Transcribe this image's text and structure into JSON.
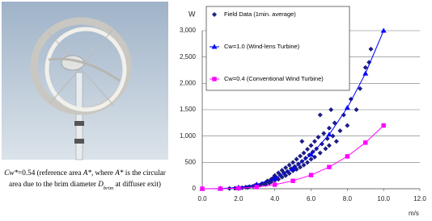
{
  "photo_caption": {
    "lines": [
      [
        {
          "text": "Cw*",
          "italic": true
        },
        {
          "text": "=0.54 (reference area "
        },
        {
          "text": "A*",
          "italic": true
        },
        {
          "text": ", where "
        },
        {
          "text": "A*",
          "italic": true
        },
        {
          "text": " is the circular"
        }
      ],
      [
        {
          "text": "area due to the brim diameter "
        },
        {
          "text": "D",
          "italic": true
        },
        {
          "text": "brim",
          "italic": true,
          "sub": true
        },
        {
          "text": " at diffuser exit)"
        }
      ]
    ]
  },
  "chart_data": {
    "type": "scatter",
    "y_unit": "W",
    "x_unit": "m/s",
    "xlim": [
      0,
      12
    ],
    "xticks": [
      {
        "value": 0,
        "label": "0.0"
      },
      {
        "value": 2,
        "label": "2.0"
      },
      {
        "value": 4,
        "label": "4.0"
      },
      {
        "value": 6,
        "label": "6.0"
      },
      {
        "value": 8,
        "label": "8.0"
      },
      {
        "value": 10,
        "label": "10.0"
      },
      {
        "value": 12,
        "label": "12.0"
      }
    ],
    "ylim": [
      0,
      3000
    ],
    "yticks": [
      0,
      500,
      {
        "value": 1000,
        "label": "1,000"
      },
      {
        "value": 1500,
        "label": "1,500"
      },
      {
        "value": 2000,
        "label": "2,000"
      },
      {
        "value": 2500,
        "label": "2,500"
      },
      {
        "value": 3000,
        "label": "3,000"
      }
    ],
    "grid": true,
    "legend": "upper left",
    "series": [
      {
        "name": "Field Data (1min. average)",
        "color": "#1c1c86",
        "marker": "diamond",
        "line": false,
        "x": [
          1.5,
          1.8,
          2.0,
          2.2,
          2.4,
          2.5,
          2.6,
          2.8,
          2.9,
          3.0,
          3.0,
          3.2,
          3.3,
          3.4,
          3.5,
          3.5,
          3.6,
          3.7,
          3.8,
          3.8,
          3.9,
          4.0,
          4.0,
          4.1,
          4.2,
          4.2,
          4.3,
          4.4,
          4.4,
          4.5,
          4.6,
          4.6,
          4.7,
          4.8,
          4.8,
          4.9,
          5.0,
          5.0,
          5.1,
          5.2,
          5.2,
          5.3,
          5.4,
          5.4,
          5.5,
          5.6,
          5.6,
          5.7,
          5.8,
          5.8,
          5.9,
          6.0,
          6.0,
          6.1,
          6.2,
          6.2,
          6.3,
          6.4,
          6.5,
          6.6,
          6.7,
          6.8,
          6.9,
          7.0,
          7.0,
          7.2,
          7.3,
          7.4,
          7.6,
          7.8,
          8.0,
          8.2,
          8.5,
          8.7,
          9.0,
          9.2,
          9.3,
          6.5,
          7.1,
          5.5
        ],
        "values": [
          5,
          10,
          15,
          20,
          30,
          25,
          40,
          45,
          60,
          50,
          80,
          70,
          100,
          90,
          120,
          80,
          150,
          110,
          180,
          130,
          200,
          160,
          250,
          210,
          300,
          180,
          260,
          350,
          220,
          300,
          400,
          250,
          330,
          450,
          290,
          380,
          500,
          340,
          420,
          560,
          370,
          470,
          620,
          410,
          520,
          680,
          450,
          580,
          750,
          500,
          640,
          820,
          560,
          700,
          900,
          600,
          760,
          980,
          680,
          850,
          1050,
          760,
          950,
          1150,
          820,
          1000,
          1250,
          900,
          1100,
          1400,
          1200,
          1700,
          1500,
          1900,
          2300,
          2400,
          2650,
          1400,
          1500,
          900
        ]
      },
      {
        "name": "Cw=1.0 (Wind-lens Turbine)",
        "color": "#0000ff",
        "marker": "triangle",
        "line": true,
        "x": [
          0,
          1,
          2,
          3,
          4,
          5,
          6,
          7,
          8,
          9,
          10
        ],
        "values": [
          0,
          3,
          24,
          81,
          192,
          375,
          648,
          1029,
          1536,
          2187,
          3000
        ]
      },
      {
        "name": "Cw=0.4 (Conventional Wind Turbine)",
        "color": "#ff00ff",
        "marker": "square",
        "line": true,
        "x": [
          0,
          1,
          2,
          3,
          4,
          5,
          6,
          7,
          8,
          9,
          10
        ],
        "values": [
          0,
          1,
          10,
          32,
          77,
          150,
          259,
          412,
          614,
          875,
          1200
        ]
      }
    ]
  }
}
